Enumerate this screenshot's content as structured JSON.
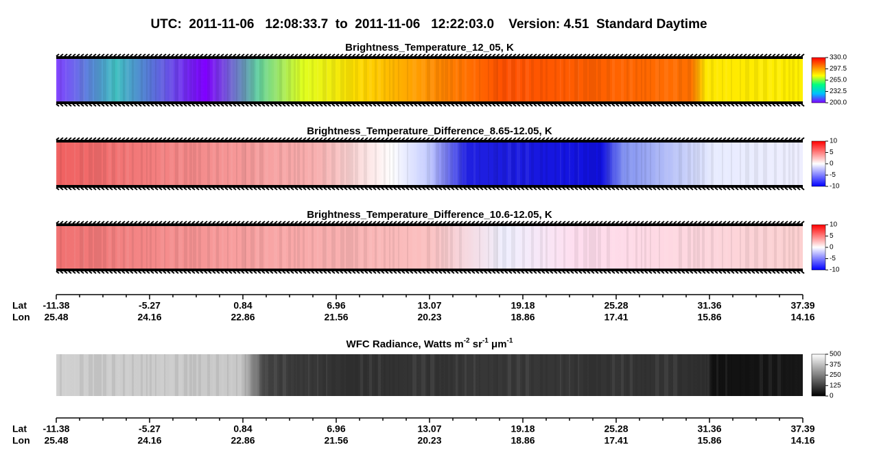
{
  "title": "UTC:  2011-11-06   12:08:33.7  to  2011-11-06   12:22:03.0    Version: 4.51  Standard Daytime",
  "chart_data": [
    {
      "type": "heatmap",
      "title": [
        "Brightness_Temperature_12_05, K"
      ],
      "colorbar": {
        "lim": [
          200,
          330
        ],
        "ticks": [
          {
            "value": 330,
            "label": "330.0"
          },
          297.5,
          {
            "value": 265,
            "label": "265.0"
          },
          232.5,
          {
            "value": 200,
            "label": "200.0"
          }
        ],
        "colors": [
          "#8000ff",
          "#00c0ff",
          "#00ff80",
          "#ffff00",
          "#ff8000",
          "#ff0000"
        ]
      }
    },
    {
      "type": "heatmap",
      "title": [
        "Brightness_Temperature_Difference_8.65-12.05, K"
      ],
      "colorbar": {
        "lim": [
          -10,
          10
        ],
        "ticks": [
          10,
          5,
          0,
          -5,
          -10
        ],
        "colors": [
          "#0000ff",
          "#ffffff",
          "#ff0000"
        ]
      }
    },
    {
      "type": "heatmap",
      "title": [
        "Brightness_Temperature_Difference_10.6-12.05, K"
      ],
      "colorbar": {
        "lim": [
          -10,
          10
        ],
        "ticks": [
          10,
          5,
          0,
          -5,
          -10
        ],
        "colors": [
          "#0000ff",
          "#ffffff",
          "#ff0000"
        ]
      }
    },
    {
      "type": "heatmap",
      "title": [
        "WFC Radiance, Watts m",
        "-2",
        " sr",
        "-1",
        " μm",
        "-1"
      ],
      "colorbar": {
        "lim": [
          0,
          500
        ],
        "ticks": [
          500,
          375,
          250,
          125,
          0
        ],
        "colors": [
          "#000000",
          "#ffffff"
        ]
      }
    }
  ],
  "axis": {
    "lat_label": "Lat",
    "lon_label": "Lon",
    "lat": [
      -11.38,
      -5.27,
      0.84,
      6.96,
      13.07,
      19.18,
      25.28,
      31.36,
      37.39
    ],
    "lon": [
      25.48,
      24.16,
      22.86,
      21.56,
      20.23,
      18.86,
      17.41,
      15.86,
      14.16
    ]
  }
}
